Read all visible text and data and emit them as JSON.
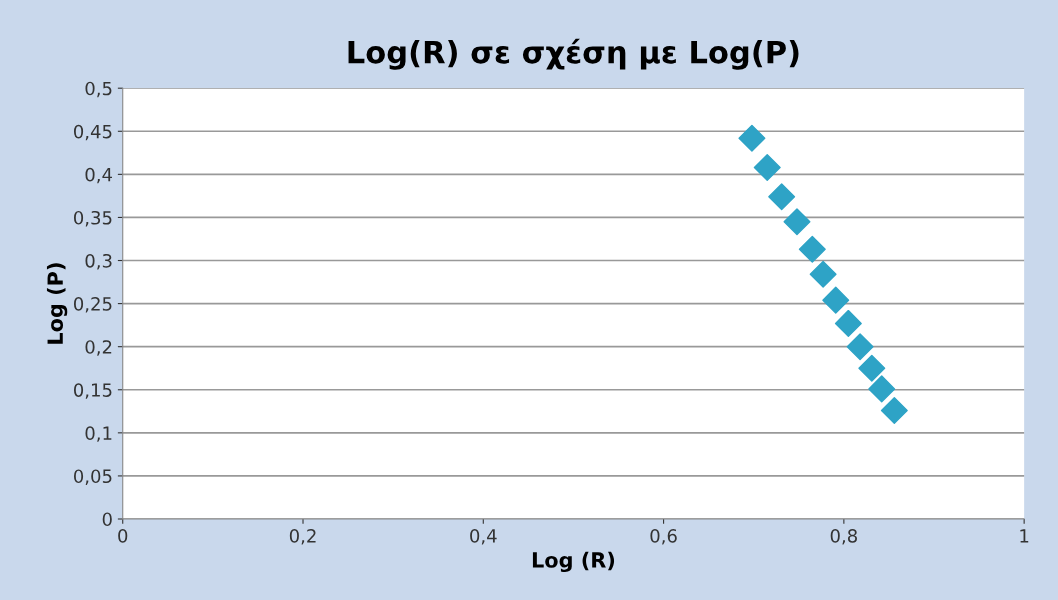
{
  "chart_data": {
    "type": "scatter",
    "title": "Log(R) σε σχέση με Log(P)",
    "xlabel": "Log (R)",
    "ylabel": "Log (P)",
    "x": [
      0.698,
      0.715,
      0.731,
      0.748,
      0.765,
      0.777,
      0.791,
      0.805,
      0.818,
      0.831,
      0.842,
      0.856
    ],
    "series": [
      {
        "color": "#2ea3c6",
        "values": [
          0.442,
          0.408,
          0.374,
          0.345,
          0.313,
          0.284,
          0.254,
          0.227,
          0.2,
          0.175,
          0.151,
          0.126
        ]
      }
    ],
    "xlim": [
      0,
      1
    ],
    "ylim": [
      0,
      0.5
    ],
    "xticks": [
      0,
      {
        "value": 0.2,
        "label": "0,2"
      },
      {
        "value": 0.4,
        "label": "0,4"
      },
      {
        "value": 0.6,
        "label": "0,6"
      },
      {
        "value": 0.8,
        "label": "0,8"
      },
      1
    ],
    "yticks": [
      0,
      {
        "value": 0.05,
        "label": "0,05"
      },
      {
        "value": 0.1,
        "label": "0,1"
      },
      {
        "value": 0.15,
        "label": "0,15"
      },
      {
        "value": 0.2,
        "label": "0,2"
      },
      {
        "value": 0.25,
        "label": "0,25"
      },
      {
        "value": 0.3,
        "label": "0,3"
      },
      {
        "value": 0.35,
        "label": "0,35"
      },
      {
        "value": 0.4,
        "label": "0,4"
      },
      {
        "value": 0.45,
        "label": "0,45"
      },
      {
        "value": 0.5,
        "label": "0,5"
      }
    ],
    "grid": "y",
    "marker": "diamond"
  }
}
